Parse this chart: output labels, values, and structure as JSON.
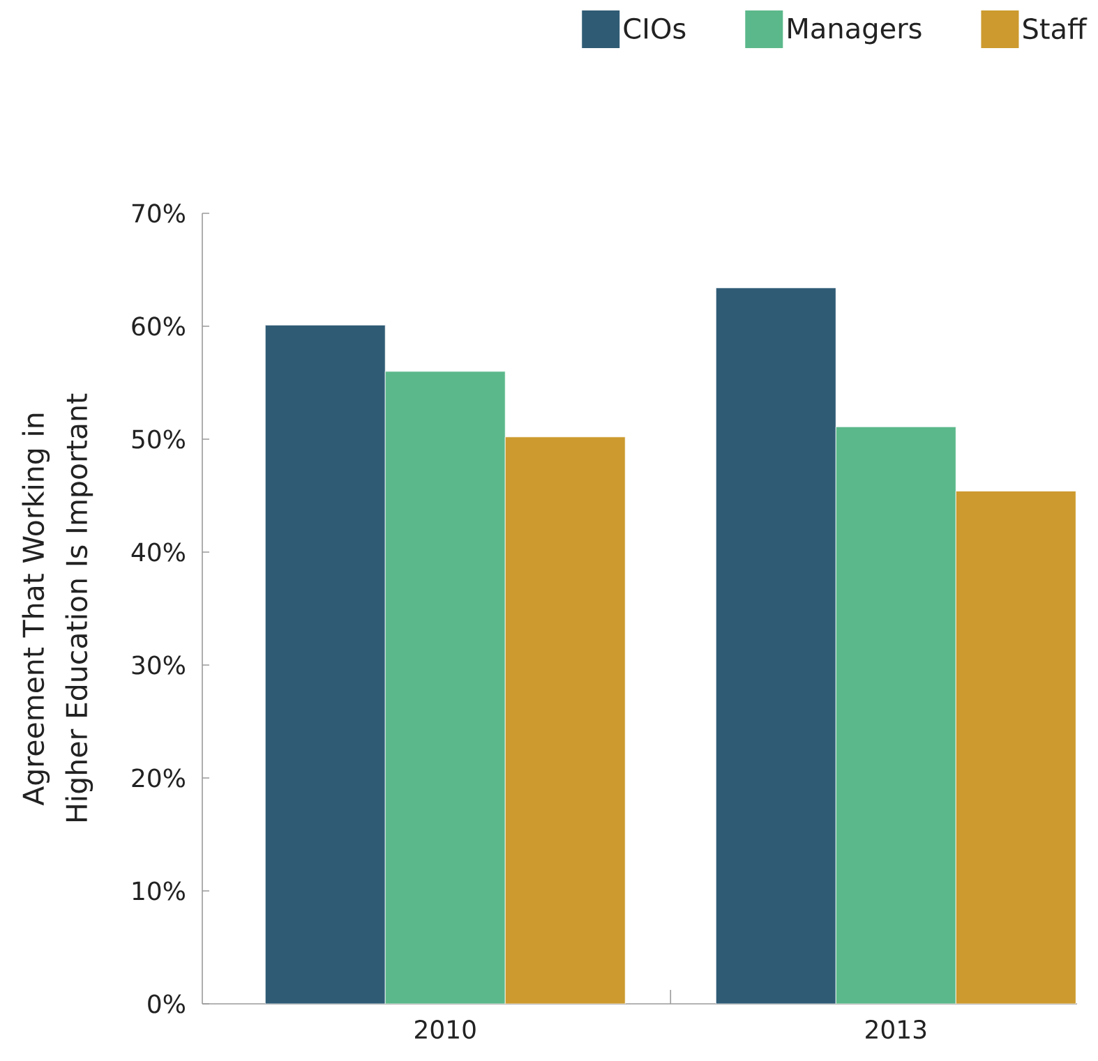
{
  "chart_data": {
    "type": "bar",
    "categories": [
      "2010",
      "2013"
    ],
    "series": [
      {
        "name": "CIOs",
        "color": "#2f5b75",
        "values": [
          60.1,
          63.4
        ]
      },
      {
        "name": "Managers",
        "color": "#5bb88a",
        "values": [
          56.0,
          51.1
        ]
      },
      {
        "name": "Staff",
        "color": "#cc9a2e",
        "values": [
          50.2,
          45.4
        ]
      }
    ],
    "ylabel": "Agreement That Working in Higher Education Is Important",
    "ylim": [
      0,
      70
    ],
    "yticks": [
      {
        "value": 0,
        "label": "0%"
      },
      {
        "value": 10,
        "label": "10%"
      },
      {
        "value": 20,
        "label": "20%"
      },
      {
        "value": 30,
        "label": "30%"
      },
      {
        "value": 40,
        "label": "40%"
      },
      {
        "value": 50,
        "label": "50%"
      },
      {
        "value": 60,
        "label": "60%"
      },
      {
        "value": 70,
        "label": "70%"
      }
    ],
    "legend": "top right"
  }
}
